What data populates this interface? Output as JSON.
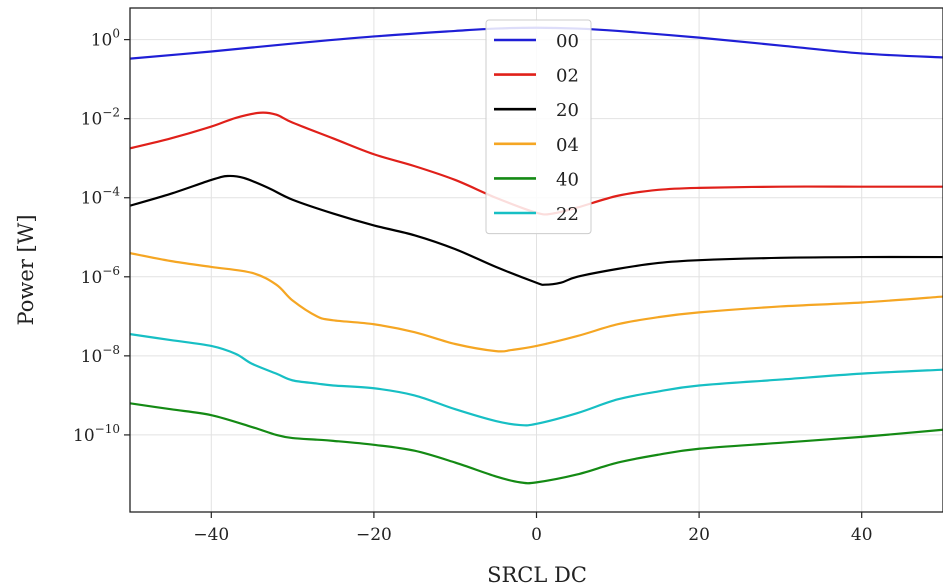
{
  "chart_data": {
    "type": "line",
    "title": "",
    "xlabel": "SRCL DC",
    "ylabel": "Power [W]",
    "xlim": [
      -50,
      50
    ],
    "ylim_log10": [
      -11.95,
      0.8
    ],
    "yscale": "log",
    "grid": true,
    "legend_position": "top-center",
    "x_ticks": [
      -40,
      -20,
      0,
      20,
      40
    ],
    "x_tick_labels": [
      "−40",
      "−20",
      "0",
      "20",
      "40"
    ],
    "y_ticks_log10": [
      0,
      -2,
      -4,
      -6,
      -8,
      -10
    ],
    "y_tick_labels": [
      {
        "base": "10",
        "exp": "0"
      },
      {
        "base": "10",
        "exp": "−2"
      },
      {
        "base": "10",
        "exp": "−4"
      },
      {
        "base": "10",
        "exp": "−6"
      },
      {
        "base": "10",
        "exp": "−8"
      },
      {
        "base": "10",
        "exp": "−10"
      }
    ],
    "series": [
      {
        "name": "00",
        "color": "#1f1fd6",
        "x": [
          -50,
          -40,
          -30,
          -20,
          -10,
          -5,
          0,
          5,
          10,
          20,
          30,
          40,
          50
        ],
        "log10_y": [
          -0.48,
          -0.3,
          -0.1,
          0.08,
          0.22,
          0.28,
          0.3,
          0.28,
          0.22,
          0.05,
          -0.15,
          -0.35,
          -0.45
        ]
      },
      {
        "name": "02",
        "color": "#e0201a",
        "x": [
          -50,
          -45,
          -40,
          -37,
          -34,
          -32,
          -30,
          -25,
          -20,
          -15,
          -10,
          -5,
          0,
          2,
          5,
          10,
          15,
          20,
          30,
          40,
          50
        ],
        "log10_y": [
          -2.75,
          -2.5,
          -2.2,
          -1.98,
          -1.85,
          -1.9,
          -2.1,
          -2.5,
          -2.9,
          -3.2,
          -3.55,
          -4.0,
          -4.38,
          -4.4,
          -4.25,
          -3.95,
          -3.8,
          -3.75,
          -3.72,
          -3.72,
          -3.72
        ]
      },
      {
        "name": "20",
        "color": "#000000",
        "x": [
          -50,
          -45,
          -40,
          -38,
          -36,
          -33,
          -30,
          -25,
          -20,
          -15,
          -10,
          -5,
          0,
          1,
          3,
          5,
          10,
          15,
          20,
          30,
          40,
          50
        ],
        "log10_y": [
          -4.2,
          -3.9,
          -3.55,
          -3.45,
          -3.5,
          -3.75,
          -4.05,
          -4.4,
          -4.7,
          -4.95,
          -5.3,
          -5.75,
          -6.15,
          -6.2,
          -6.15,
          -6.0,
          -5.8,
          -5.65,
          -5.58,
          -5.52,
          -5.5,
          -5.5
        ]
      },
      {
        "name": "04",
        "color": "#f5a623",
        "x": [
          -50,
          -45,
          -40,
          -35,
          -32,
          -30,
          -27,
          -25,
          -20,
          -15,
          -10,
          -5,
          -3,
          0,
          5,
          10,
          15,
          20,
          30,
          40,
          50
        ],
        "log10_y": [
          -5.4,
          -5.6,
          -5.75,
          -5.9,
          -6.2,
          -6.6,
          -7.0,
          -7.1,
          -7.2,
          -7.4,
          -7.7,
          -7.88,
          -7.85,
          -7.75,
          -7.5,
          -7.2,
          -7.02,
          -6.9,
          -6.75,
          -6.65,
          -6.5
        ]
      },
      {
        "name": "40",
        "color": "#148a14",
        "x": [
          -50,
          -45,
          -40,
          -35,
          -32,
          -30,
          -27,
          -25,
          -20,
          -15,
          -10,
          -5,
          -2,
          0,
          5,
          10,
          15,
          20,
          30,
          40,
          50
        ],
        "log10_y": [
          -9.2,
          -9.35,
          -9.5,
          -9.8,
          -10.0,
          -10.08,
          -10.12,
          -10.15,
          -10.25,
          -10.4,
          -10.7,
          -11.05,
          -11.2,
          -11.2,
          -11.0,
          -10.7,
          -10.5,
          -10.35,
          -10.2,
          -10.05,
          -9.87
        ]
      },
      {
        "name": "22",
        "color": "#17bfc4",
        "x": [
          -50,
          -45,
          -40,
          -37,
          -35,
          -32,
          -30,
          -27,
          -25,
          -20,
          -15,
          -10,
          -5,
          -2,
          0,
          5,
          10,
          15,
          20,
          30,
          40,
          50
        ],
        "log10_y": [
          -7.45,
          -7.6,
          -7.75,
          -7.95,
          -8.2,
          -8.45,
          -8.62,
          -8.7,
          -8.75,
          -8.82,
          -9.0,
          -9.35,
          -9.65,
          -9.75,
          -9.72,
          -9.45,
          -9.1,
          -8.9,
          -8.75,
          -8.6,
          -8.45,
          -8.35
        ]
      }
    ]
  }
}
